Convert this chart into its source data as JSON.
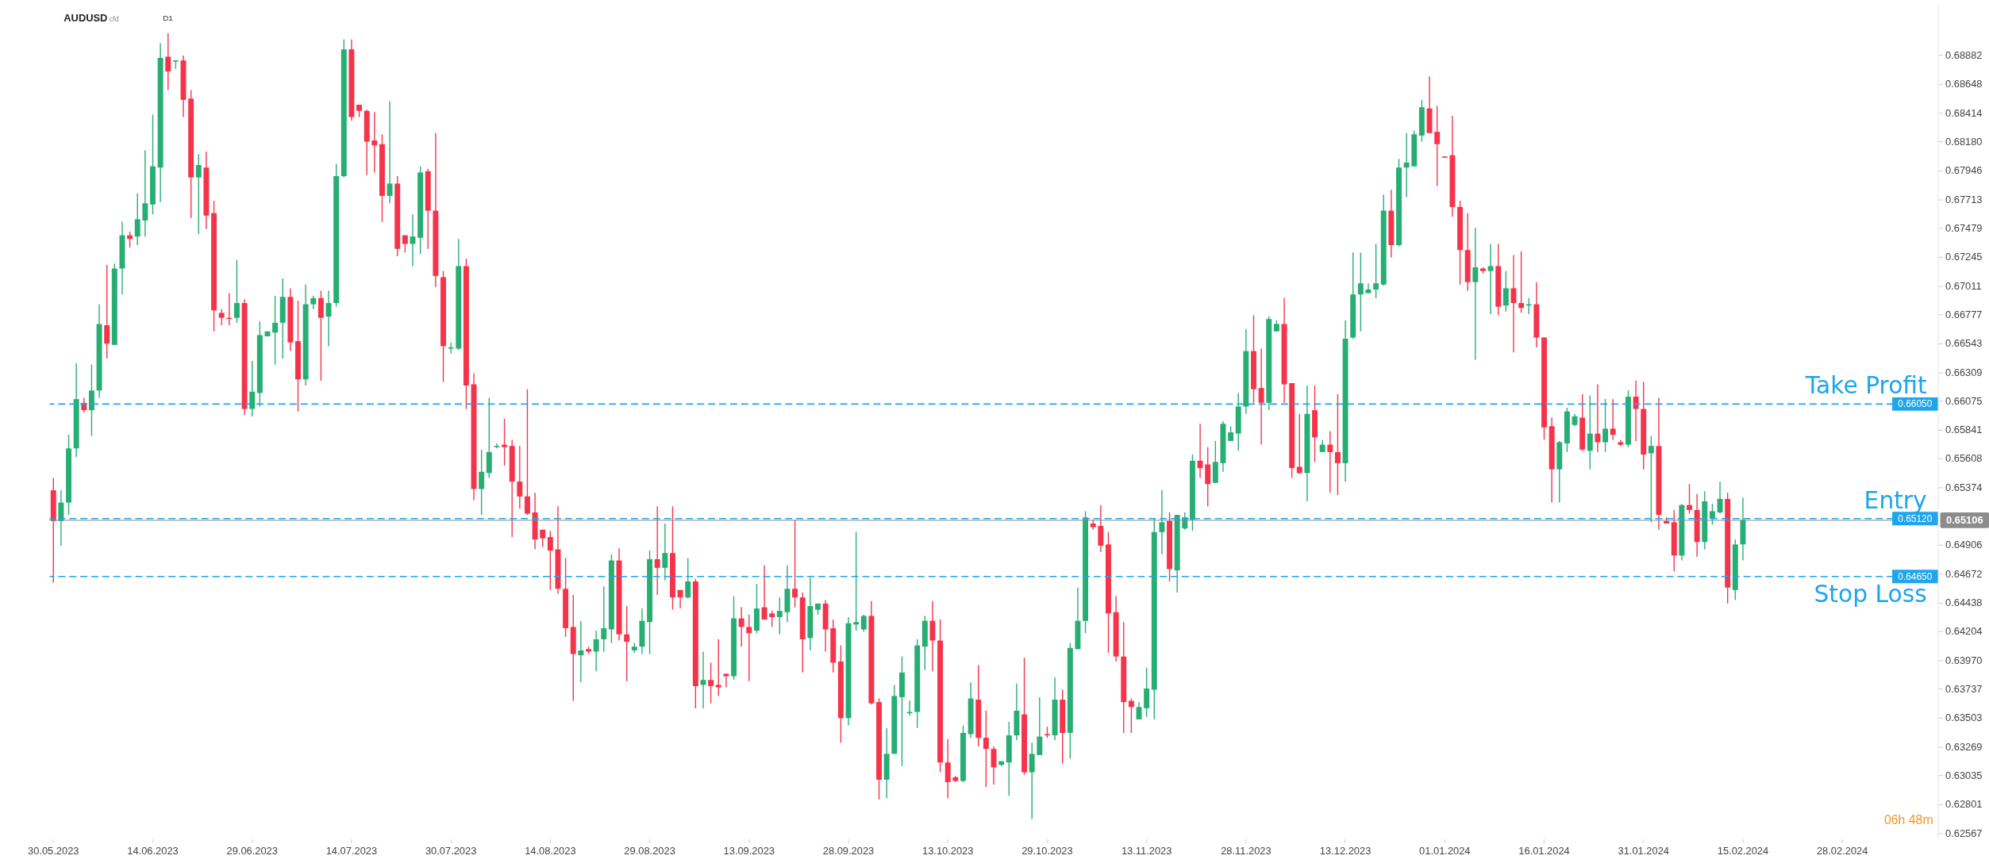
{
  "chart_data": {
    "type": "candlestick",
    "title": "AUDUSD",
    "subtitle": "cfd",
    "annotations": [
      "D1",
      "06h 48m",
      {
        "text": "0.66050",
        "y": 0.6605
      },
      {
        "text": "0.65120",
        "y": 0.6512
      },
      {
        "text": "0.64650",
        "y": 0.6465
      }
    ],
    "categories": [
      "30.05.2023",
      null,
      null,
      null,
      null,
      null,
      null,
      null,
      null,
      null,
      null,
      null,
      null,
      "14.06.2023",
      null,
      null,
      null,
      null,
      null,
      null,
      null,
      null,
      null,
      null,
      null,
      null,
      "29.06.2023",
      null,
      null,
      null,
      null,
      null,
      null,
      null,
      null,
      null,
      null,
      null,
      null,
      "14.07.2023",
      null,
      null,
      null,
      null,
      null,
      null,
      null,
      null,
      null,
      null,
      null,
      null,
      "30.07.2023",
      null,
      null,
      null,
      null,
      null,
      null,
      null,
      null,
      null,
      null,
      null,
      null,
      "14.08.2023",
      null,
      null,
      null,
      null,
      null,
      null,
      null,
      null,
      null,
      null,
      null,
      null,
      "29.08.2023",
      null,
      null,
      null,
      null,
      null,
      null,
      null,
      null,
      null,
      null,
      null,
      null,
      "13.09.2023",
      null,
      null,
      null,
      null,
      null,
      null,
      null,
      null,
      null,
      null,
      null,
      null,
      "28.09.2023",
      null,
      null,
      null,
      null,
      null,
      null,
      null,
      null,
      null,
      null,
      null,
      null,
      "13.10.2023",
      null,
      null,
      null,
      null,
      null,
      null,
      null,
      null,
      null,
      null,
      null,
      null,
      "29.10.2023",
      null,
      null,
      null,
      null,
      null,
      null,
      null,
      null,
      null,
      null,
      null,
      null,
      "13.11.2023",
      null,
      null,
      null,
      null,
      null,
      null,
      null,
      null,
      null,
      null,
      null,
      null,
      "28.11.2023",
      null,
      null,
      null,
      null,
      null,
      null,
      null,
      null,
      null,
      null,
      null,
      null,
      "13.12.2023",
      null,
      null,
      null,
      null,
      null,
      null,
      null,
      null,
      null,
      null,
      null,
      null,
      "01.01.2024",
      null,
      null,
      null,
      null,
      null,
      null,
      null,
      null,
      null,
      null,
      null,
      null,
      "16.01.2024",
      null,
      null,
      null,
      null,
      null,
      null,
      null,
      null,
      null,
      null,
      null,
      null,
      "31.01.2024",
      null,
      null,
      null,
      null,
      null,
      null,
      null,
      null,
      null,
      null,
      null,
      null,
      "15.02.2024",
      null,
      null,
      null,
      null,
      null,
      null,
      null,
      null,
      null,
      null,
      null,
      null,
      "28.02.2024",
      null,
      null,
      null,
      null,
      null,
      null,
      null,
      null,
      null,
      null,
      null,
      null
    ],
    "colors": [
      "#f5344b",
      "#27ae74",
      "#27ae74",
      "#27ae74",
      "#f5344b",
      "#27ae74",
      "#27ae74",
      "#f5344b",
      "#27ae74",
      "#27ae74",
      "#f5344b",
      "#27ae74",
      "#27ae74",
      "#27ae74",
      "#27ae74",
      "#f5344b",
      "#27ae74",
      "#f5344b",
      "#f5344b",
      "#27ae74",
      "#f5344b",
      "#f5344b",
      "#f5344b",
      "#f5344b",
      "#27ae74",
      "#f5344b",
      "#27ae74",
      "#27ae74",
      "#27ae74",
      "#27ae74",
      "#27ae74",
      "#f5344b",
      "#f5344b",
      "#27ae74",
      "#27ae74",
      "#f5344b",
      "#27ae74",
      "#27ae74",
      "#27ae74",
      "#f5344b",
      "#f5344b",
      "#f5344b",
      "#f5344b",
      "#f5344b",
      "#27ae74",
      "#f5344b",
      "#f5344b",
      "#27ae74",
      "#27ae74",
      "#f5344b",
      "#f5344b",
      "#f5344b",
      "#27ae74",
      "#27ae74",
      "#f5344b",
      "#f5344b",
      "#27ae74",
      "#27ae74",
      "#27ae74",
      "#f5344b",
      "#f5344b",
      "#f5344b",
      "#f5344b",
      "#f5344b",
      "#f5344b",
      "#f5344b",
      "#f5344b",
      "#f5344b",
      "#f5344b",
      "#27ae74",
      "#f5344b",
      "#27ae74",
      "#27ae74",
      "#27ae74",
      "#f5344b",
      "#f5344b",
      "#27ae74",
      "#27ae74",
      "#27ae74",
      "#f5344b",
      "#27ae74",
      "#f5344b",
      "#f5344b",
      "#27ae74",
      "#f5344b",
      "#27ae74",
      "#f5344b",
      "#f5344b",
      "#f5344b",
      "#27ae74",
      "#f5344b",
      "#f5344b",
      "#27ae74",
      "#f5344b",
      "#f5344b",
      "#27ae74",
      "#27ae74",
      "#f5344b",
      "#f5344b",
      "#27ae74",
      "#27ae74",
      "#f5344b",
      "#f5344b",
      "#f5344b",
      "#27ae74",
      "#27ae74",
      "#27ae74",
      "#f5344b",
      "#f5344b",
      "#27ae74",
      "#27ae74",
      "#27ae74",
      "#27ae74",
      "#27ae74",
      "#27ae74",
      "#f5344b",
      "#f5344b",
      "#f5344b",
      "#f5344b",
      "#27ae74",
      "#27ae74",
      "#f5344b",
      "#f5344b",
      "#f5344b",
      "#27ae74",
      "#27ae74",
      "#27ae74",
      "#f5344b",
      "#27ae74",
      "#27ae74",
      "#f5344b",
      "#27ae74",
      "#f5344b",
      "#27ae74",
      "#27ae74",
      "#27ae74",
      "#f5344b",
      "#f5344b",
      "#f5344b",
      "#f5344b",
      "#f5344b",
      "#f5344b",
      "#27ae74",
      "#27ae74",
      "#27ae74",
      "#27ae74",
      "#f5344b",
      "#27ae74",
      "#27ae74",
      "#27ae74",
      "#f5344b",
      "#f5344b",
      "#27ae74",
      "#27ae74",
      "#27ae74",
      "#27ae74",
      "#27ae74",
      "#f5344b",
      "#f5344b",
      "#27ae74",
      "#27ae74",
      "#f5344b",
      "#f5344b",
      "#f5344b",
      "#27ae74",
      "#f5344b",
      "#27ae74",
      "#f5344b",
      "#f5344b",
      "#27ae74",
      "#27ae74",
      "#27ae74",
      "#27ae74",
      "#27ae74",
      "#27ae74",
      "#f5344b",
      "#27ae74",
      "#27ae74",
      "#27ae74",
      "#27ae74",
      "#f5344b",
      "#f5344b",
      "#f5344b",
      "#f5344b",
      "#f5344b",
      "#f5344b",
      "#27ae74",
      "#f5344b",
      "#27ae74",
      "#f5344b",
      "#27ae74",
      "#f5344b",
      "#f5344b",
      "#27ae74",
      "#f5344b",
      "#f5344b",
      "#f5344b",
      "#27ae74",
      "#27ae74",
      "#27ae74",
      "#f5344b",
      "#27ae74",
      "#f5344b",
      "#27ae74",
      "#f5344b",
      "#f5344b",
      "#27ae74",
      "#f5344b",
      "#f5344b",
      "#27ae74",
      "#f5344b",
      "#f5344b",
      "#f5344b",
      "#27ae74",
      "#f5344b",
      "#f5344b",
      "#27ae74",
      "#27ae74",
      "#27ae74",
      "#f5344b",
      "#27ae74",
      "#27ae74",
      null,
      null,
      null,
      null,
      null,
      null,
      null,
      null,
      null,
      null,
      null,
      null,
      null,
      null,
      null,
      null,
      null,
      null,
      null,
      null,
      null,
      null,
      null,
      null,
      null
    ],
    "ohlc": [
      [
        0.6535,
        0.6545,
        0.646,
        0.651
      ],
      [
        0.651,
        0.6535,
        0.649,
        0.6525
      ],
      [
        0.6525,
        0.658,
        0.6515,
        0.6569
      ],
      [
        0.6569,
        0.6638,
        0.6562,
        0.6609
      ],
      [
        0.6606,
        0.661,
        0.6598,
        0.66
      ],
      [
        0.66,
        0.6637,
        0.6579,
        0.6616
      ],
      [
        0.6616,
        0.6686,
        0.661,
        0.667
      ],
      [
        0.6669,
        0.6718,
        0.6642,
        0.6654
      ],
      [
        0.6653,
        0.6719,
        0.6653,
        0.6715
      ],
      [
        0.6715,
        0.6753,
        0.6694,
        0.6742
      ],
      [
        0.6742,
        0.6745,
        0.6732,
        0.6739
      ],
      [
        0.6741,
        0.6776,
        0.6734,
        0.6755
      ],
      [
        0.6754,
        0.6811,
        0.6741,
        0.6768
      ],
      [
        0.6767,
        0.684,
        0.6759,
        0.6798
      ],
      [
        0.6797,
        0.6898,
        0.6769,
        0.6886
      ],
      [
        0.6887,
        0.6906,
        0.686,
        0.6875
      ],
      [
        0.6883,
        0.6884,
        0.6877,
        0.6884
      ],
      [
        0.6884,
        0.6888,
        0.6838,
        0.6852
      ],
      [
        0.6853,
        0.686,
        0.6756,
        0.6789
      ],
      [
        0.6789,
        0.6808,
        0.6743,
        0.6799
      ],
      [
        0.6797,
        0.681,
        0.6747,
        0.6758
      ],
      [
        0.676,
        0.677,
        0.6664,
        0.6681
      ],
      [
        0.6679,
        0.6682,
        0.6669,
        0.6675
      ],
      [
        0.6675,
        0.6695,
        0.6669,
        0.6674
      ],
      [
        0.6675,
        0.6722,
        0.6671,
        0.6687
      ],
      [
        0.6687,
        0.669,
        0.6596,
        0.6601
      ],
      [
        0.6601,
        0.664,
        0.6595,
        0.6615
      ],
      [
        0.6614,
        0.6672,
        0.6603,
        0.6661
      ],
      [
        0.666,
        0.6664,
        0.666,
        0.6664
      ],
      [
        0.6663,
        0.6693,
        0.6637,
        0.6671
      ],
      [
        0.6671,
        0.6707,
        0.6642,
        0.6692
      ],
      [
        0.6692,
        0.6699,
        0.6648,
        0.6655
      ],
      [
        0.6656,
        0.6689,
        0.6599,
        0.6625
      ],
      [
        0.6625,
        0.6702,
        0.662,
        0.6686
      ],
      [
        0.6686,
        0.6693,
        0.6682,
        0.6691
      ],
      [
        0.6691,
        0.6697,
        0.6624,
        0.6675
      ],
      [
        0.6676,
        0.6697,
        0.6652,
        0.6687
      ],
      [
        0.6687,
        0.68,
        0.6684,
        0.679
      ],
      [
        0.679,
        0.6901,
        0.6789,
        0.6893
      ],
      [
        0.6893,
        0.6901,
        0.6835,
        0.6838
      ],
      [
        0.6848,
        0.6848,
        0.6838,
        0.6843
      ],
      [
        0.6843,
        0.6844,
        0.6791,
        0.6818
      ],
      [
        0.6819,
        0.6842,
        0.6793,
        0.6815
      ],
      [
        0.6816,
        0.6824,
        0.6753,
        0.6774
      ],
      [
        0.6774,
        0.6851,
        0.6768,
        0.6784
      ],
      [
        0.6784,
        0.679,
        0.6725,
        0.6731
      ],
      [
        0.6742,
        0.6742,
        0.6728,
        0.6735
      ],
      [
        0.6735,
        0.6759,
        0.6717,
        0.6741
      ],
      [
        0.674,
        0.6798,
        0.6727,
        0.6793
      ],
      [
        0.6794,
        0.6796,
        0.6731,
        0.6762
      ],
      [
        0.6762,
        0.6825,
        0.67,
        0.6709
      ],
      [
        0.6708,
        0.6713,
        0.6623,
        0.6652
      ],
      [
        0.665,
        0.6655,
        0.6646,
        0.6651
      ],
      [
        0.665,
        0.6739,
        0.6649,
        0.6717
      ],
      [
        0.6717,
        0.6723,
        0.6601,
        0.662
      ],
      [
        0.6621,
        0.663,
        0.6527,
        0.6536
      ],
      [
        0.6536,
        0.6568,
        0.6515,
        0.655
      ],
      [
        0.6549,
        0.661,
        0.6545,
        0.6566
      ],
      [
        0.657,
        0.6573,
        0.6569,
        0.6571
      ],
      [
        0.6572,
        0.6593,
        0.6555,
        0.657
      ],
      [
        0.6571,
        0.6576,
        0.6497,
        0.6542
      ],
      [
        0.6542,
        0.6571,
        0.652,
        0.653
      ],
      [
        0.653,
        0.6617,
        0.6515,
        0.6516
      ],
      [
        0.6517,
        0.6533,
        0.6487,
        0.6495
      ],
      [
        0.6503,
        0.6503,
        0.6489,
        0.6496
      ],
      [
        0.6497,
        0.6502,
        0.6454,
        0.6486
      ],
      [
        0.6487,
        0.6522,
        0.6451,
        0.6455
      ],
      [
        0.6455,
        0.648,
        0.6416,
        0.6423
      ],
      [
        0.6424,
        0.645,
        0.6364,
        0.6402
      ],
      [
        0.6401,
        0.6429,
        0.6379,
        0.6405
      ],
      [
        0.6406,
        0.6408,
        0.6402,
        0.6404
      ],
      [
        0.6404,
        0.6421,
        0.6388,
        0.6414
      ],
      [
        0.6414,
        0.6457,
        0.6404,
        0.6423
      ],
      [
        0.6422,
        0.6483,
        0.6411,
        0.6478
      ],
      [
        0.6478,
        0.6488,
        0.6413,
        0.6418
      ],
      [
        0.6418,
        0.6441,
        0.638,
        0.6412
      ],
      [
        0.6405,
        0.6411,
        0.6403,
        0.6408
      ],
      [
        0.6408,
        0.6439,
        0.6402,
        0.6429
      ],
      [
        0.6428,
        0.6486,
        0.6402,
        0.6479
      ],
      [
        0.6479,
        0.6522,
        0.645,
        0.6472
      ],
      [
        0.6472,
        0.6508,
        0.6462,
        0.6484
      ],
      [
        0.6484,
        0.6522,
        0.6438,
        0.6448
      ],
      [
        0.6454,
        0.6454,
        0.6439,
        0.6448
      ],
      [
        0.6448,
        0.648,
        0.6447,
        0.6461
      ],
      [
        0.6461,
        0.6463,
        0.6358,
        0.6376
      ],
      [
        0.6377,
        0.6404,
        0.6358,
        0.6381
      ],
      [
        0.6381,
        0.6395,
        0.6362,
        0.6376
      ],
      [
        0.6377,
        0.6414,
        0.6368,
        0.6375
      ],
      [
        0.6386,
        0.6386,
        0.6375,
        0.6384
      ],
      [
        0.6384,
        0.6449,
        0.6381,
        0.6431
      ],
      [
        0.6431,
        0.644,
        0.6408,
        0.6424
      ],
      [
        0.6424,
        0.6434,
        0.638,
        0.6419
      ],
      [
        0.6421,
        0.6459,
        0.6419,
        0.6439
      ],
      [
        0.644,
        0.6474,
        0.643,
        0.643
      ],
      [
        0.6435,
        0.6437,
        0.6424,
        0.6432
      ],
      [
        0.6432,
        0.6448,
        0.6418,
        0.6437
      ],
      [
        0.6436,
        0.6474,
        0.6428,
        0.6455
      ],
      [
        0.6455,
        0.6511,
        0.644,
        0.6448
      ],
      [
        0.6448,
        0.6452,
        0.6387,
        0.6414
      ],
      [
        0.6415,
        0.6464,
        0.6405,
        0.6441
      ],
      [
        0.6438,
        0.6443,
        0.6434,
        0.6443
      ],
      [
        0.6443,
        0.6446,
        0.6404,
        0.6422
      ],
      [
        0.6423,
        0.643,
        0.6387,
        0.6395
      ],
      [
        0.6396,
        0.6409,
        0.633,
        0.635
      ],
      [
        0.635,
        0.6432,
        0.6344,
        0.6427
      ],
      [
        0.6426,
        0.6501,
        0.6421,
        0.6428
      ],
      [
        0.6422,
        0.6434,
        0.642,
        0.6433
      ],
      [
        0.6433,
        0.6445,
        0.6361,
        0.6362
      ],
      [
        0.6363,
        0.6366,
        0.6284,
        0.63
      ],
      [
        0.63,
        0.6342,
        0.6285,
        0.6321
      ],
      [
        0.6321,
        0.6377,
        0.6321,
        0.6368
      ],
      [
        0.6367,
        0.64,
        0.6311,
        0.6387
      ],
      [
        0.6354,
        0.6364,
        0.6352,
        0.6355
      ],
      [
        0.6355,
        0.6414,
        0.6342,
        0.6409
      ],
      [
        0.6408,
        0.6433,
        0.6389,
        0.6429
      ],
      [
        0.6429,
        0.6445,
        0.6388,
        0.6413
      ],
      [
        0.6413,
        0.643,
        0.6306,
        0.6314
      ],
      [
        0.6314,
        0.6333,
        0.6285,
        0.6298
      ],
      [
        0.6302,
        0.6303,
        0.6298,
        0.6299
      ],
      [
        0.6299,
        0.6344,
        0.6298,
        0.6338
      ],
      [
        0.6337,
        0.6379,
        0.6334,
        0.6366
      ],
      [
        0.6365,
        0.6393,
        0.6327,
        0.6334
      ],
      [
        0.6334,
        0.6356,
        0.6294,
        0.6325
      ],
      [
        0.6325,
        0.6327,
        0.6296,
        0.631
      ],
      [
        0.6312,
        0.6315,
        0.6311,
        0.6315
      ],
      [
        0.6314,
        0.6347,
        0.6287,
        0.6336
      ],
      [
        0.6336,
        0.6378,
        0.6332,
        0.6356
      ],
      [
        0.6353,
        0.6399,
        0.6304,
        0.6306
      ],
      [
        0.6306,
        0.633,
        0.6268,
        0.6321
      ],
      [
        0.632,
        0.6367,
        0.632,
        0.6335
      ],
      [
        0.6337,
        0.6343,
        0.6334,
        0.6336
      ],
      [
        0.6336,
        0.6383,
        0.6332,
        0.6365
      ],
      [
        0.6365,
        0.6373,
        0.6313,
        0.6338
      ],
      [
        0.6338,
        0.6411,
        0.6317,
        0.6407
      ],
      [
        0.6406,
        0.6456,
        0.6406,
        0.6429
      ],
      [
        0.6429,
        0.6518,
        0.6419,
        0.6513
      ],
      [
        0.6508,
        0.6511,
        0.6503,
        0.6505
      ],
      [
        0.6506,
        0.6523,
        0.6485,
        0.649
      ],
      [
        0.6491,
        0.6501,
        0.6403,
        0.6435
      ],
      [
        0.6436,
        0.6449,
        0.6396,
        0.64
      ],
      [
        0.64,
        0.6428,
        0.6338,
        0.6363
      ],
      [
        0.6364,
        0.6366,
        0.6338,
        0.6359
      ],
      [
        0.6349,
        0.6363,
        0.6349,
        0.6359
      ],
      [
        0.6358,
        0.6391,
        0.6351,
        0.6374
      ],
      [
        0.6373,
        0.6512,
        0.6349,
        0.6501
      ],
      [
        0.6501,
        0.6535,
        0.6483,
        0.6509
      ],
      [
        0.651,
        0.6517,
        0.6461,
        0.6471
      ],
      [
        0.647,
        0.6515,
        0.6452,
        0.6515
      ],
      [
        0.6504,
        0.6517,
        0.6503,
        0.6513
      ],
      [
        0.6511,
        0.6564,
        0.6502,
        0.6559
      ],
      [
        0.6559,
        0.6589,
        0.6545,
        0.6553
      ],
      [
        0.6556,
        0.657,
        0.6522,
        0.654
      ],
      [
        0.6541,
        0.6575,
        0.6541,
        0.6558
      ],
      [
        0.6557,
        0.6591,
        0.655,
        0.6589
      ],
      [
        0.6575,
        0.6587,
        0.6575,
        0.6582
      ],
      [
        0.6581,
        0.6614,
        0.6567,
        0.6603
      ],
      [
        0.6603,
        0.6666,
        0.6597,
        0.6648
      ],
      [
        0.6648,
        0.6677,
        0.6606,
        0.6617
      ],
      [
        0.6618,
        0.665,
        0.6572,
        0.6606
      ],
      [
        0.6606,
        0.6676,
        0.66,
        0.6674
      ],
      [
        0.6664,
        0.6673,
        0.6664,
        0.667
      ],
      [
        0.667,
        0.6691,
        0.6606,
        0.6621
      ],
      [
        0.6622,
        0.6622,
        0.6545,
        0.6553
      ],
      [
        0.6554,
        0.6597,
        0.6548,
        0.6549
      ],
      [
        0.6549,
        0.662,
        0.6526,
        0.6597
      ],
      [
        0.66,
        0.662,
        0.6558,
        0.6578
      ],
      [
        0.6566,
        0.6576,
        0.6566,
        0.6572
      ],
      [
        0.6572,
        0.6583,
        0.6533,
        0.6566
      ],
      [
        0.6566,
        0.6613,
        0.6531,
        0.6557
      ],
      [
        0.6557,
        0.6673,
        0.6542,
        0.6658
      ],
      [
        0.6659,
        0.6728,
        0.6658,
        0.6694
      ],
      [
        0.6694,
        0.6728,
        0.6664,
        0.6703
      ],
      [
        0.6695,
        0.6703,
        0.6695,
        0.6698
      ],
      [
        0.6698,
        0.6735,
        0.6691,
        0.6703
      ],
      [
        0.6702,
        0.6775,
        0.6701,
        0.6762
      ],
      [
        0.6762,
        0.6779,
        0.6724,
        0.6734
      ],
      [
        0.6734,
        0.6804,
        0.6733,
        0.6797
      ],
      [
        0.6797,
        0.6825,
        0.6773,
        0.6801
      ],
      [
        0.6798,
        0.6827,
        0.6798,
        0.6824
      ],
      [
        0.6823,
        0.6852,
        0.6818,
        0.6846
      ],
      [
        0.6845,
        0.6871,
        0.6825,
        0.6825
      ],
      [
        0.6826,
        0.6847,
        0.6782,
        0.6816
      ],
      [
        0.6806,
        0.6806,
        0.6805,
        0.6805
      ],
      [
        0.6807,
        0.6839,
        0.6757,
        0.6765
      ],
      [
        0.6765,
        0.677,
        0.6702,
        0.673
      ],
      [
        0.673,
        0.676,
        0.6697,
        0.6704
      ],
      [
        0.6704,
        0.6748,
        0.6641,
        0.6716
      ],
      [
        0.6715,
        0.6716,
        0.6711,
        0.6713
      ],
      [
        0.6713,
        0.6735,
        0.6678,
        0.6717
      ],
      [
        0.6717,
        0.6735,
        0.6677,
        0.6684
      ],
      [
        0.6685,
        0.6713,
        0.668,
        0.6699
      ],
      [
        0.6699,
        0.6726,
        0.6647,
        0.6687
      ],
      [
        0.6687,
        0.6729,
        0.6679,
        0.6683
      ],
      [
        0.6685,
        0.6691,
        0.6678,
        0.6686
      ],
      [
        0.6686,
        0.6704,
        0.6651,
        0.6659
      ],
      [
        0.6659,
        0.6659,
        0.6576,
        0.6586
      ],
      [
        0.6587,
        0.6594,
        0.6525,
        0.6552
      ],
      [
        0.6552,
        0.6575,
        0.6525,
        0.6574
      ],
      [
        0.6573,
        0.6602,
        0.6566,
        0.6599
      ],
      [
        0.6588,
        0.6597,
        0.6587,
        0.6595
      ],
      [
        0.6594,
        0.6613,
        0.6567,
        0.6568
      ],
      [
        0.6567,
        0.6612,
        0.6552,
        0.6581
      ],
      [
        0.6581,
        0.6621,
        0.6566,
        0.6574
      ],
      [
        0.6574,
        0.6609,
        0.6566,
        0.6585
      ],
      [
        0.6585,
        0.6609,
        0.6576,
        0.658
      ],
      [
        0.6574,
        0.6576,
        0.6571,
        0.6572
      ],
      [
        0.6572,
        0.6616,
        0.657,
        0.6611
      ],
      [
        0.6611,
        0.6624,
        0.6575,
        0.6601
      ],
      [
        0.6601,
        0.6623,
        0.6552,
        0.6564
      ],
      [
        0.6565,
        0.6579,
        0.6509,
        0.6571
      ],
      [
        0.6571,
        0.661,
        0.6503,
        0.6515
      ],
      [
        0.651,
        0.6513,
        0.6508,
        0.6508
      ],
      [
        0.6509,
        0.6519,
        0.6469,
        0.6482
      ],
      [
        0.6482,
        0.6524,
        0.6478,
        0.6523
      ],
      [
        0.6523,
        0.654,
        0.6516,
        0.6519
      ],
      [
        0.6519,
        0.6532,
        0.6481,
        0.6493
      ],
      [
        0.6493,
        0.6534,
        0.6487,
        0.6526
      ],
      [
        0.6512,
        0.6524,
        0.6507,
        0.6518
      ],
      [
        0.6517,
        0.6542,
        0.6516,
        0.6528
      ],
      [
        0.6528,
        0.6533,
        0.6443,
        0.6456
      ],
      [
        0.6454,
        0.6495,
        0.6446,
        0.6491
      ],
      [
        0.6491,
        0.6529,
        0.6478,
        0.6511
      ],
      null,
      null,
      null,
      null,
      null,
      null,
      null,
      null,
      null,
      null,
      null,
      null,
      null,
      null,
      null,
      null,
      null,
      null,
      null,
      null,
      null,
      null,
      null,
      null,
      null
    ],
    "ylim": [
      0.6252,
      0.693
    ],
    "yticks": [
      0.68882,
      0.68648,
      0.68414,
      {
        "value": 0.6818,
        "label": "0.68180"
      },
      0.67946,
      0.67713,
      0.67479,
      0.67245,
      0.67011,
      0.66777,
      0.66543,
      0.66309,
      0.66075,
      0.65841,
      0.65608,
      0.65374,
      0.64906,
      0.64672,
      0.64438,
      0.64204,
      {
        "value": 0.6397,
        "label": "0.63970"
      },
      0.63737,
      0.63503,
      0.63269,
      0.63035,
      0.62801,
      0.62567
    ],
    "ref_lines": [
      {
        "axis": "y",
        "value": 0.6605,
        "label": "Take Profit",
        "color": "#1ea5ec",
        "line_style": "dashed"
      },
      {
        "axis": "y",
        "value": 0.6512,
        "label": "Entry",
        "color": "#1ea5ec",
        "line_style": "dashed"
      },
      {
        "axis": "y",
        "value": 0.6465,
        "label": "Stop Loss",
        "color": "#1ea5ec",
        "line_style": "dashed"
      },
      {
        "axis": "y",
        "value": 0.65106,
        "label": "0.65106",
        "color": "#8c8c8c",
        "line_style": "solid"
      }
    ],
    "grid": false
  }
}
